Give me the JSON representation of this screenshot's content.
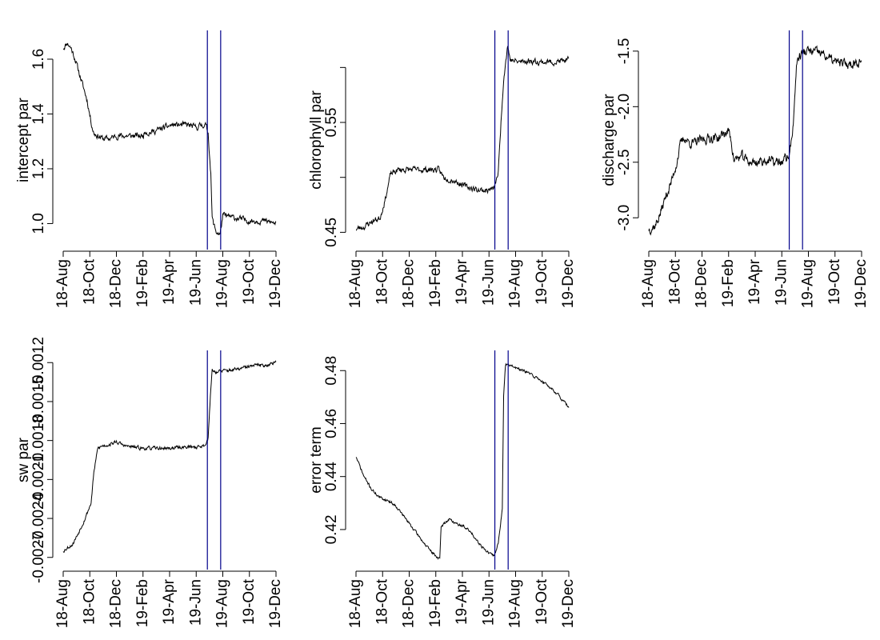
{
  "chart_data": [
    {
      "type": "line",
      "ylabel": "intercept par",
      "xticks": [
        "18-Aug",
        "18-Oct",
        "18-Dec",
        "19-Feb",
        "19-Apr",
        "19-Jun",
        "19-Aug",
        "19-Oct",
        "19-Dec"
      ],
      "yticks": [
        1.0,
        1.2,
        1.4,
        1.6
      ],
      "ytick_labels": [
        "1.0",
        "1.2",
        "1.4",
        "1.6"
      ],
      "ylim": [
        0.94,
        1.67
      ],
      "vlines": [
        5.42,
        5.92
      ],
      "vline_color": "#00008b",
      "line_color": "#000000",
      "noise": 0.012,
      "seed": 11,
      "series": [
        {
          "x": [
            0,
            0.15,
            0.3,
            0.45,
            0.6,
            0.75,
            0.9,
            1.05,
            1.15,
            1.3,
            1.5,
            1.75,
            2.0,
            2.3,
            2.6,
            3.0,
            3.1,
            3.2,
            3.5,
            3.8,
            4.1,
            4.4,
            4.7,
            5.0,
            5.2,
            5.35,
            5.45,
            5.55,
            5.6,
            5.65,
            5.75,
            5.9,
            6.0,
            6.5,
            7.0,
            7.5,
            8.0
          ],
          "y": [
            1.64,
            1.66,
            1.64,
            1.6,
            1.55,
            1.5,
            1.45,
            1.37,
            1.33,
            1.32,
            1.31,
            1.31,
            1.32,
            1.32,
            1.32,
            1.32,
            1.34,
            1.33,
            1.34,
            1.35,
            1.36,
            1.36,
            1.36,
            1.35,
            1.36,
            1.36,
            1.33,
            1.18,
            1.02,
            1.0,
            0.97,
            0.96,
            1.03,
            1.02,
            1.01,
            1.01,
            1.0
          ]
        }
      ]
    },
    {
      "type": "line",
      "ylabel": "chlorophyll par",
      "xticks": [
        "18-Aug",
        "18-Oct",
        "18-Dec",
        "19-Feb",
        "19-Apr",
        "19-Jun",
        "19-Aug",
        "19-Oct",
        "19-Dec"
      ],
      "yticks": [
        0.45,
        0.5,
        0.55,
        0.6
      ],
      "ytick_labels": [
        "0.45",
        "",
        "0.55",
        ""
      ],
      "ylim": [
        0.443,
        0.625
      ],
      "vlines": [
        5.22,
        5.72
      ],
      "vline_color": "#00008b",
      "line_color": "#000000",
      "noise": 0.003,
      "seed": 23,
      "series": [
        {
          "x": [
            0,
            0.3,
            0.6,
            0.9,
            1.1,
            1.3,
            1.6,
            2.0,
            2.4,
            2.8,
            3.1,
            3.3,
            3.7,
            4.1,
            4.5,
            4.9,
            5.2,
            5.35,
            5.45,
            5.55,
            5.65,
            5.7,
            5.8,
            6.1,
            6.5,
            7.0,
            7.5,
            8.0
          ],
          "y": [
            0.453,
            0.455,
            0.46,
            0.463,
            0.48,
            0.503,
            0.507,
            0.507,
            0.507,
            0.507,
            0.507,
            0.5,
            0.497,
            0.492,
            0.489,
            0.488,
            0.49,
            0.505,
            0.55,
            0.59,
            0.61,
            0.62,
            0.607,
            0.605,
            0.606,
            0.605,
            0.605,
            0.607
          ]
        }
      ]
    },
    {
      "type": "line",
      "ylabel": "discharge par",
      "xticks": [
        "18-Aug",
        "18-Oct",
        "18-Dec",
        "19-Feb",
        "19-Apr",
        "19-Jun",
        "19-Aug",
        "19-Oct",
        "19-Dec"
      ],
      "yticks": [
        -3.0,
        -2.5,
        -2.0,
        -1.5
      ],
      "ytick_labels": [
        "-3.0",
        "-2.5",
        "-2.0",
        "-1.5"
      ],
      "ylim": [
        -3.2,
        -1.4
      ],
      "vlines": [
        5.28,
        5.78
      ],
      "vline_color": "#00008b",
      "line_color": "#000000",
      "noise": 0.05,
      "seed": 37,
      "series": [
        {
          "x": [
            0,
            0.25,
            0.45,
            0.65,
            0.85,
            1.05,
            1.2,
            1.35,
            1.5,
            1.7,
            2.0,
            2.3,
            2.6,
            3.0,
            3.1,
            3.2,
            3.5,
            3.8,
            4.1,
            4.4,
            4.7,
            5.0,
            5.3,
            5.45,
            5.55,
            5.65,
            5.75,
            6.0,
            6.5,
            7.0,
            7.5,
            8.0
          ],
          "y": [
            -3.1,
            -3.07,
            -2.95,
            -2.8,
            -2.68,
            -2.5,
            -2.33,
            -2.28,
            -2.32,
            -2.33,
            -2.3,
            -2.28,
            -2.28,
            -2.22,
            -2.3,
            -2.48,
            -2.45,
            -2.5,
            -2.5,
            -2.48,
            -2.5,
            -2.5,
            -2.43,
            -2.1,
            -1.62,
            -1.55,
            -1.52,
            -1.5,
            -1.52,
            -1.6,
            -1.62,
            -1.58
          ]
        }
      ]
    },
    {
      "type": "line",
      "ylabel": "sw par",
      "xticks": [
        "18-Aug",
        "18-Oct",
        "18-Dec",
        "19-Feb",
        "19-Apr",
        "19-Jun",
        "19-Aug",
        "19-Oct",
        "19-Dec"
      ],
      "yticks": [
        -0.0027,
        -0.0024,
        -0.0021,
        -0.0018,
        -0.0015,
        -0.0012
      ],
      "ytick_labels": [
        "-0.0027",
        "-0.0024",
        "-0.0021",
        "-0.0018",
        "-0.0015",
        "-0.0012"
      ],
      "ylim": [
        -0.00272,
        -0.00118
      ],
      "vlines": [
        5.42,
        5.92
      ],
      "vline_color": "#00008b",
      "line_color": "#000000",
      "noise": 1.5e-05,
      "seed": 53,
      "series": [
        {
          "x": [
            0,
            0.2,
            0.35,
            0.55,
            0.8,
            1.05,
            1.15,
            1.3,
            1.5,
            1.75,
            2.0,
            2.3,
            2.6,
            3.0,
            3.5,
            4.0,
            4.5,
            5.0,
            5.3,
            5.45,
            5.55,
            5.6,
            5.7,
            5.8,
            6.2,
            6.6,
            7.0,
            7.3,
            7.6,
            8.0
          ],
          "y": [
            -0.00265,
            -0.00262,
            -0.0026,
            -0.00252,
            -0.00241,
            -0.00228,
            -0.00205,
            -0.00186,
            -0.00184,
            -0.00183,
            -0.00181,
            -0.00184,
            -0.00185,
            -0.00186,
            -0.00186,
            -0.00186,
            -0.00185,
            -0.00185,
            -0.00184,
            -0.00178,
            -0.0014,
            -0.00125,
            -0.00127,
            -0.00127,
            -0.00126,
            -0.00125,
            -0.00123,
            -0.00122,
            -0.00122,
            -0.0012
          ]
        }
      ]
    },
    {
      "type": "line",
      "ylabel": "error term",
      "xticks": [
        "18-Aug",
        "18-Oct",
        "18-Dec",
        "19-Feb",
        "19-Apr",
        "19-Jun",
        "19-Aug",
        "19-Oct",
        "19-Dec"
      ],
      "yticks": [
        0.42,
        0.44,
        0.46,
        0.48
      ],
      "ytick_labels": [
        "0.42",
        "0.44",
        "0.46",
        "0.48"
      ],
      "ylim": [
        0.4085,
        0.484
      ],
      "vlines": [
        5.22,
        5.72
      ],
      "vline_color": "#00008b",
      "line_color": "#000000",
      "noise": 0.0006,
      "seed": 71,
      "series": [
        {
          "x": [
            0,
            0.3,
            0.6,
            0.9,
            1.2,
            1.5,
            1.8,
            2.1,
            2.4,
            2.7,
            3.0,
            3.15,
            3.2,
            3.5,
            3.8,
            4.1,
            4.4,
            4.7,
            5.0,
            5.2,
            5.35,
            5.5,
            5.55,
            5.62,
            5.7,
            5.8,
            6.0,
            6.5,
            7.0,
            7.5,
            8.0
          ],
          "y": [
            0.4475,
            0.44,
            0.435,
            0.432,
            0.431,
            0.429,
            0.425,
            0.421,
            0.417,
            0.413,
            0.41,
            0.409,
            0.421,
            0.424,
            0.422,
            0.421,
            0.418,
            0.414,
            0.411,
            0.41,
            0.415,
            0.428,
            0.47,
            0.482,
            0.483,
            0.482,
            0.481,
            0.479,
            0.476,
            0.472,
            0.466
          ]
        }
      ]
    }
  ]
}
